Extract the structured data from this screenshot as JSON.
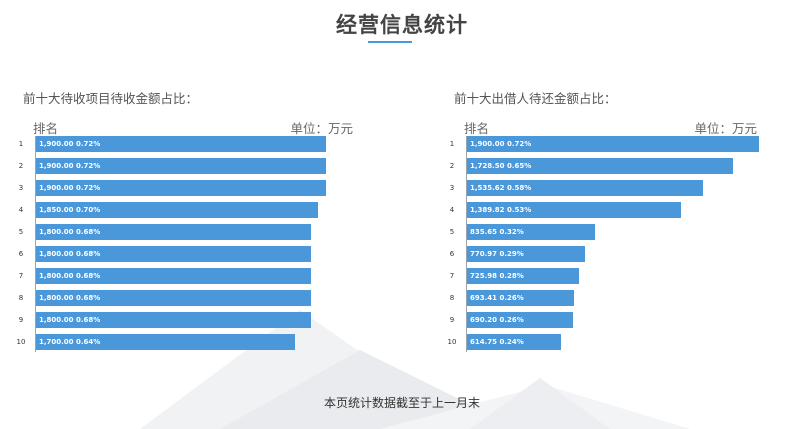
{
  "page": {
    "title": "经营信息统计",
    "footer_note": "本页统计数据截至于上一月末"
  },
  "colors": {
    "accent": "#4a97d9",
    "bar": "#4a97d9",
    "bar_text": "#ffffff"
  },
  "chart_data": [
    {
      "type": "bar",
      "orientation": "horizontal",
      "title": "前十大待收项目待收金额占比：",
      "category_header": "排名",
      "unit_label": "单位：万元",
      "categories": [
        "1",
        "2",
        "3",
        "4",
        "5",
        "6",
        "7",
        "8",
        "9",
        "10"
      ],
      "values": [
        1900.0,
        1900.0,
        1900.0,
        1850.0,
        1800.0,
        1800.0,
        1800.0,
        1800.0,
        1800.0,
        1700.0
      ],
      "labels": [
        "1,900.00",
        "1,900.00",
        "1,900.00",
        "1,850.00",
        "1,800.00",
        "1,800.00",
        "1,800.00",
        "1,800.00",
        "1,800.00",
        "1,700.00"
      ],
      "percents": [
        "0.72%",
        "0.72%",
        "0.72%",
        "0.70%",
        "0.68%",
        "0.68%",
        "0.68%",
        "0.68%",
        "0.68%",
        "0.64%"
      ],
      "xlim": [
        0,
        1900
      ]
    },
    {
      "type": "bar",
      "orientation": "horizontal",
      "title": "前十大出借人待还金额占比：",
      "category_header": "排名",
      "unit_label": "单位：万元",
      "categories": [
        "1",
        "2",
        "3",
        "4",
        "5",
        "6",
        "7",
        "8",
        "9",
        "10"
      ],
      "values": [
        1900.0,
        1728.5,
        1535.62,
        1389.82,
        835.65,
        770.97,
        725.98,
        693.41,
        690.2,
        614.75
      ],
      "labels": [
        "1,900.00",
        "1,728.50",
        "1,535.62",
        "1,389.82",
        "835.65",
        "770.97",
        "725.98",
        "693.41",
        "690.20",
        "614.75"
      ],
      "percents": [
        "0.72%",
        "0.65%",
        "0.58%",
        "0.53%",
        "0.32%",
        "0.29%",
        "0.28%",
        "0.26%",
        "0.26%",
        "0.24%"
      ],
      "xlim": [
        0,
        1900
      ]
    }
  ]
}
